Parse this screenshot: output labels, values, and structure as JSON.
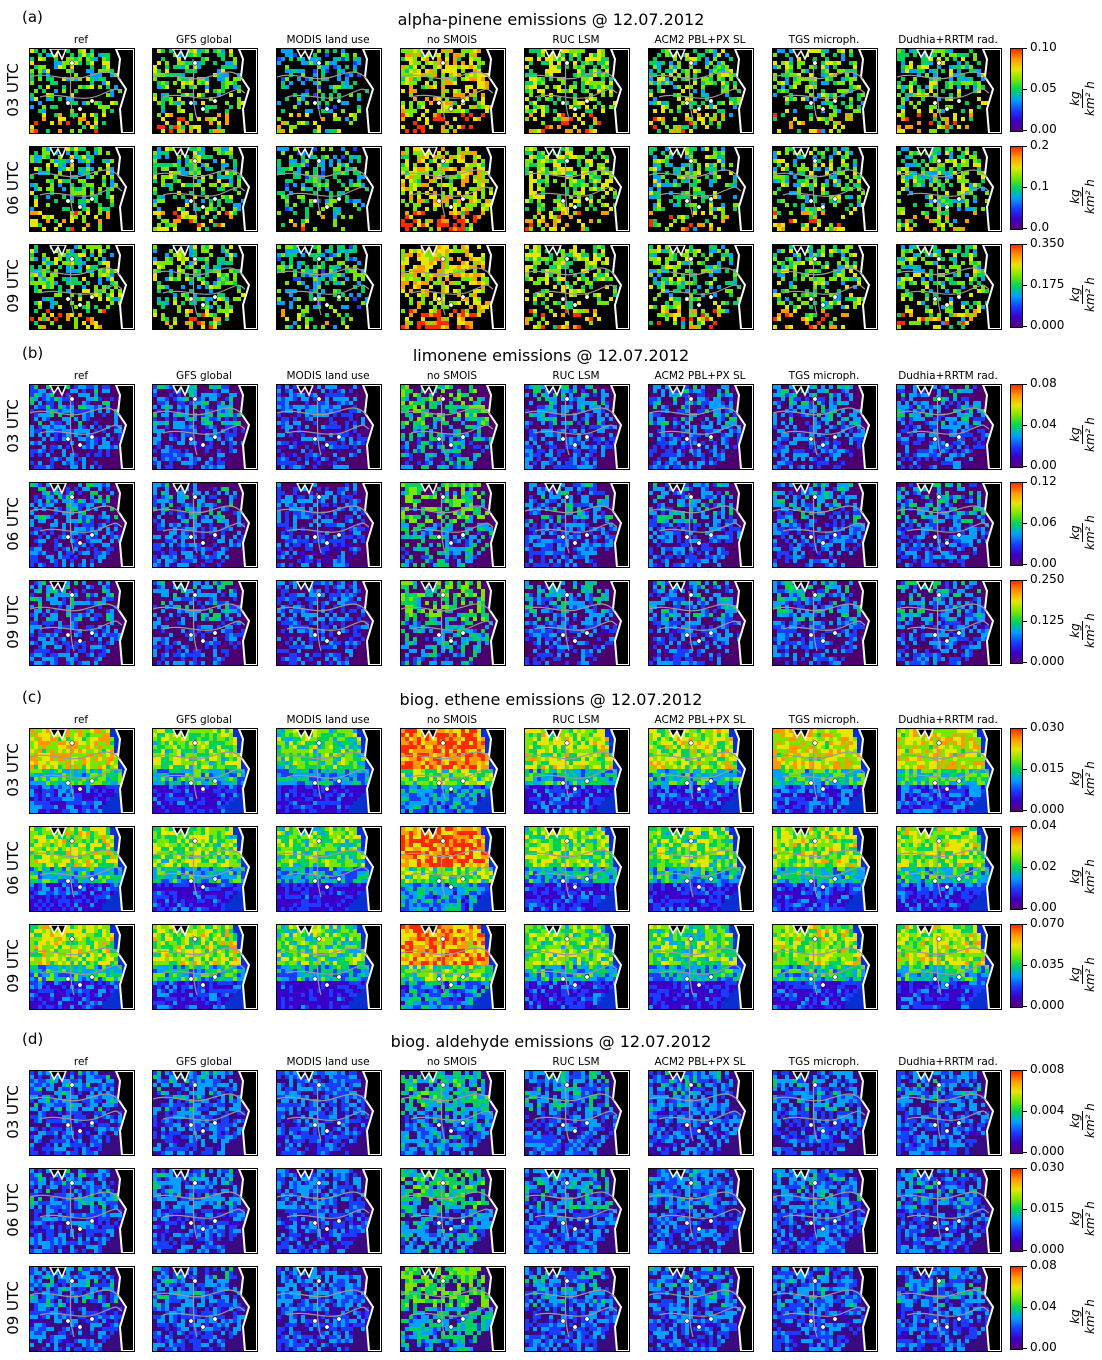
{
  "columns": [
    "ref",
    "GFS global",
    "MODIS land use",
    "no SMOIS",
    "RUC LSM",
    "ACM2 PBL+PX SL",
    "TGS microph.",
    "Dudhia+RRTM rad."
  ],
  "rows": [
    "03 UTC",
    "06 UTC",
    "09 UTC"
  ],
  "map_markers": [
    "V",
    "M",
    "B"
  ],
  "panels": [
    {
      "letter": "(a)",
      "title": "alpha-pinene emissions @ 12.07.2012",
      "scheme": "black",
      "colorbars": [
        [
          "0.10",
          "0.05",
          "0.00"
        ],
        [
          "0.2",
          "0.1",
          "0.0"
        ],
        [
          "0.350",
          "0.175",
          "0.000"
        ]
      ],
      "intensity": [
        [
          0.35,
          0.35,
          0.15,
          0.7,
          0.5,
          0.35,
          0.35,
          0.35
        ],
        [
          0.35,
          0.35,
          0.2,
          0.7,
          0.5,
          0.35,
          0.35,
          0.35
        ],
        [
          0.4,
          0.35,
          0.2,
          0.75,
          0.5,
          0.35,
          0.4,
          0.35
        ]
      ]
    },
    {
      "letter": "(b)",
      "title": "limonene emissions @ 12.07.2012",
      "scheme": "purple",
      "colorbars": [
        [
          "0.08",
          "0.04",
          "0.00"
        ],
        [
          "0.12",
          "0.06",
          "0.00"
        ],
        [
          "0.250",
          "0.125",
          "0.000"
        ]
      ],
      "intensity": [
        [
          0.3,
          0.3,
          0.2,
          0.55,
          0.3,
          0.3,
          0.3,
          0.3
        ],
        [
          0.3,
          0.3,
          0.2,
          0.55,
          0.3,
          0.3,
          0.3,
          0.3
        ],
        [
          0.3,
          0.3,
          0.2,
          0.55,
          0.3,
          0.3,
          0.3,
          0.3
        ]
      ]
    },
    {
      "letter": "(c)",
      "title": "biog. ethene emissions @ 12.07.2012",
      "scheme": "green",
      "colorbars": [
        [
          "0.030",
          "0.015",
          "0.000"
        ],
        [
          "0.04",
          "0.02",
          "0.00"
        ],
        [
          "0.070",
          "0.035",
          "0.000"
        ]
      ],
      "intensity": [
        [
          0.7,
          0.55,
          0.5,
          0.9,
          0.6,
          0.6,
          0.7,
          0.7
        ],
        [
          0.6,
          0.55,
          0.5,
          0.9,
          0.55,
          0.55,
          0.6,
          0.6
        ],
        [
          0.6,
          0.6,
          0.5,
          0.85,
          0.55,
          0.5,
          0.6,
          0.6
        ]
      ]
    },
    {
      "letter": "(d)",
      "title": "biog. aldehyde emissions @ 12.07.2012",
      "scheme": "blue",
      "colorbars": [
        [
          "0.008",
          "0.004",
          "0.000"
        ],
        [
          "0.030",
          "0.015",
          "0.000"
        ],
        [
          "0.08",
          "0.04",
          "0.00"
        ]
      ],
      "intensity": [
        [
          0.3,
          0.3,
          0.25,
          0.55,
          0.35,
          0.3,
          0.3,
          0.3
        ],
        [
          0.3,
          0.3,
          0.25,
          0.6,
          0.35,
          0.3,
          0.3,
          0.3
        ],
        [
          0.3,
          0.3,
          0.25,
          0.75,
          0.35,
          0.3,
          0.3,
          0.3
        ]
      ]
    }
  ],
  "unit_num": "kg",
  "unit_den": "km² h",
  "colormap": [
    "#5a0078",
    "#3a00c8",
    "#1a3cff",
    "#00a0ff",
    "#00d060",
    "#78e600",
    "#e8e600",
    "#ff9900",
    "#ff2a00",
    "#d8d8d8"
  ],
  "chart_data": [
    {
      "type": "heatmap",
      "title": "alpha-pinene emissions @ 12.07.2012",
      "ranges": {
        "03 UTC": [
          0.0,
          0.1
        ],
        "06 UTC": [
          0.0,
          0.2
        ],
        "09 UTC": [
          0.0,
          0.35
        ]
      }
    },
    {
      "type": "heatmap",
      "title": "limonene emissions @ 12.07.2012",
      "ranges": {
        "03 UTC": [
          0.0,
          0.08
        ],
        "06 UTC": [
          0.0,
          0.12
        ],
        "09 UTC": [
          0.0,
          0.25
        ]
      }
    },
    {
      "type": "heatmap",
      "title": "biog. ethene emissions @ 12.07.2012",
      "ranges": {
        "03 UTC": [
          0.0,
          0.03
        ],
        "06 UTC": [
          0.0,
          0.04
        ],
        "09 UTC": [
          0.0,
          0.07
        ]
      }
    },
    {
      "type": "heatmap",
      "title": "biog. aldehyde emissions @ 12.07.2012",
      "ranges": {
        "03 UTC": [
          0.0,
          0.008
        ],
        "06 UTC": [
          0.0,
          0.03
        ],
        "09 UTC": [
          0.0,
          0.08
        ]
      }
    }
  ]
}
